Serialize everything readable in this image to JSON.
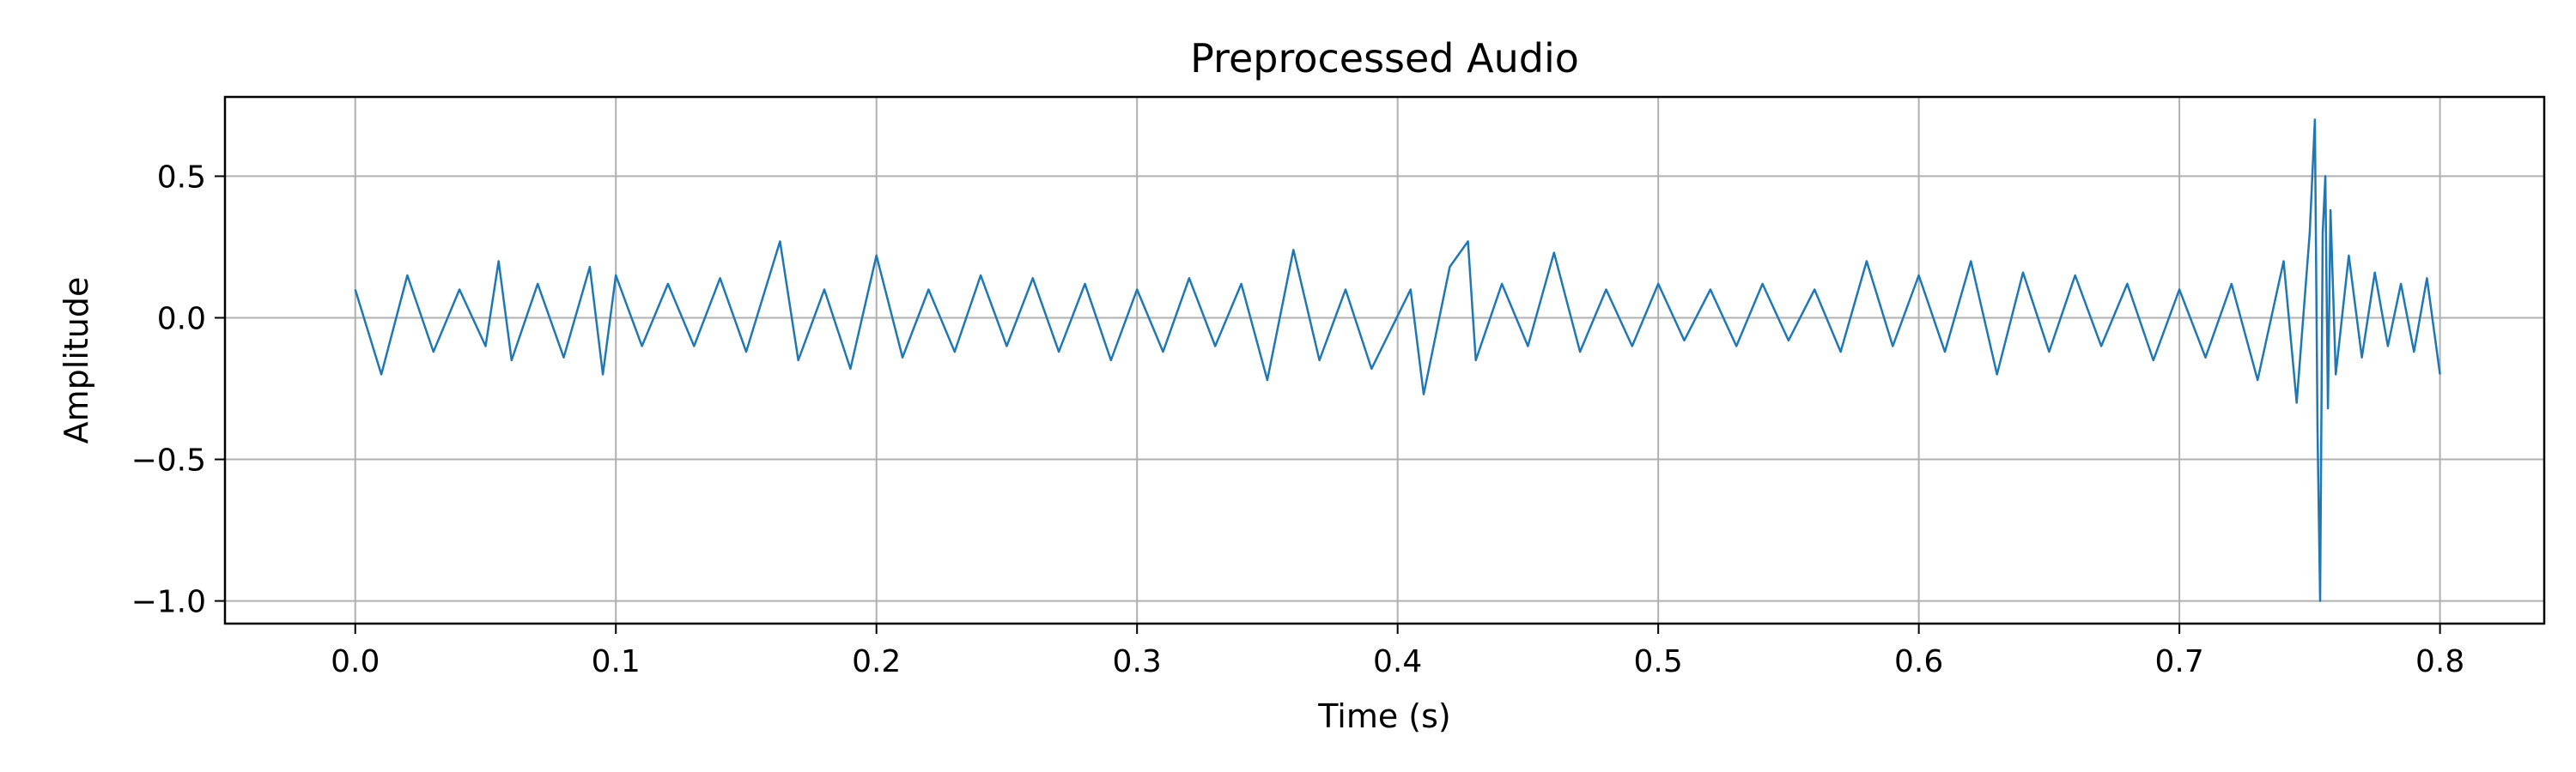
{
  "colors": {
    "line": "#1f77b4",
    "grid": "#b0b0b0",
    "axes": "#000000",
    "background": "#ffffff"
  },
  "chart_data": {
    "type": "line",
    "title": "Preprocessed Audio",
    "xlabel": "Time (s)",
    "ylabel": "Amplitude",
    "xlim": [
      -0.05,
      0.84
    ],
    "ylim": [
      -1.08,
      0.78
    ],
    "grid": true,
    "x_ticks": [
      {
        "value": 0.0,
        "label": "0.0"
      },
      {
        "value": 0.1,
        "label": "0.1"
      },
      {
        "value": 0.2,
        "label": "0.2"
      },
      {
        "value": 0.3,
        "label": "0.3"
      },
      {
        "value": 0.4,
        "label": "0.4"
      },
      {
        "value": 0.5,
        "label": "0.5"
      },
      {
        "value": 0.6,
        "label": "0.6"
      },
      {
        "value": 0.7,
        "label": "0.7"
      },
      {
        "value": 0.8,
        "label": "0.8"
      }
    ],
    "y_ticks": [
      {
        "value": 0.5,
        "label": "0.5"
      },
      {
        "value": 0.0,
        "label": "0.0"
      },
      {
        "value": -0.5,
        "label": "−0.5"
      },
      {
        "value": -1.0,
        "label": "−1.0"
      }
    ],
    "series": [
      {
        "x": [
          0.0,
          0.01,
          0.02,
          0.03,
          0.04,
          0.05,
          0.055,
          0.06,
          0.07,
          0.08,
          0.09,
          0.095,
          0.1,
          0.11,
          0.12,
          0.13,
          0.14,
          0.15,
          0.163,
          0.17,
          0.18,
          0.19,
          0.2,
          0.21,
          0.22,
          0.23,
          0.24,
          0.25,
          0.26,
          0.27,
          0.28,
          0.29,
          0.3,
          0.31,
          0.32,
          0.33,
          0.34,
          0.35,
          0.36,
          0.37,
          0.38,
          0.39,
          0.405,
          0.41,
          0.42,
          0.427,
          0.43,
          0.44,
          0.45,
          0.46,
          0.47,
          0.48,
          0.49,
          0.5,
          0.51,
          0.52,
          0.53,
          0.54,
          0.55,
          0.56,
          0.57,
          0.58,
          0.59,
          0.6,
          0.61,
          0.62,
          0.63,
          0.64,
          0.65,
          0.66,
          0.67,
          0.68,
          0.69,
          0.7,
          0.71,
          0.72,
          0.73,
          0.74,
          0.745,
          0.75,
          0.752,
          0.753,
          0.754,
          0.755,
          0.756,
          0.757,
          0.758,
          0.76,
          0.765,
          0.77,
          0.775,
          0.78,
          0.785,
          0.79,
          0.795,
          0.8
        ],
        "y": [
          0.1,
          -0.2,
          0.15,
          -0.12,
          0.1,
          -0.1,
          0.2,
          -0.15,
          0.12,
          -0.14,
          0.18,
          -0.2,
          0.15,
          -0.1,
          0.12,
          -0.1,
          0.14,
          -0.12,
          0.27,
          -0.15,
          0.1,
          -0.18,
          0.22,
          -0.14,
          0.1,
          -0.12,
          0.15,
          -0.1,
          0.14,
          -0.12,
          0.12,
          -0.15,
          0.1,
          -0.12,
          0.14,
          -0.1,
          0.12,
          -0.22,
          0.24,
          -0.15,
          0.1,
          -0.18,
          0.1,
          -0.27,
          0.18,
          0.27,
          -0.15,
          0.12,
          -0.1,
          0.23,
          -0.12,
          0.1,
          -0.1,
          0.12,
          -0.08,
          0.1,
          -0.1,
          0.12,
          -0.08,
          0.1,
          -0.12,
          0.2,
          -0.1,
          0.15,
          -0.12,
          0.2,
          -0.2,
          0.16,
          -0.12,
          0.15,
          -0.1,
          0.12,
          -0.15,
          0.1,
          -0.14,
          0.12,
          -0.22,
          0.2,
          -0.3,
          0.3,
          0.7,
          -0.4,
          -1.0,
          0.3,
          0.5,
          -0.32,
          0.38,
          -0.2,
          0.22,
          -0.14,
          0.16,
          -0.1,
          0.12,
          -0.12,
          0.14,
          -0.2
        ]
      }
    ]
  }
}
